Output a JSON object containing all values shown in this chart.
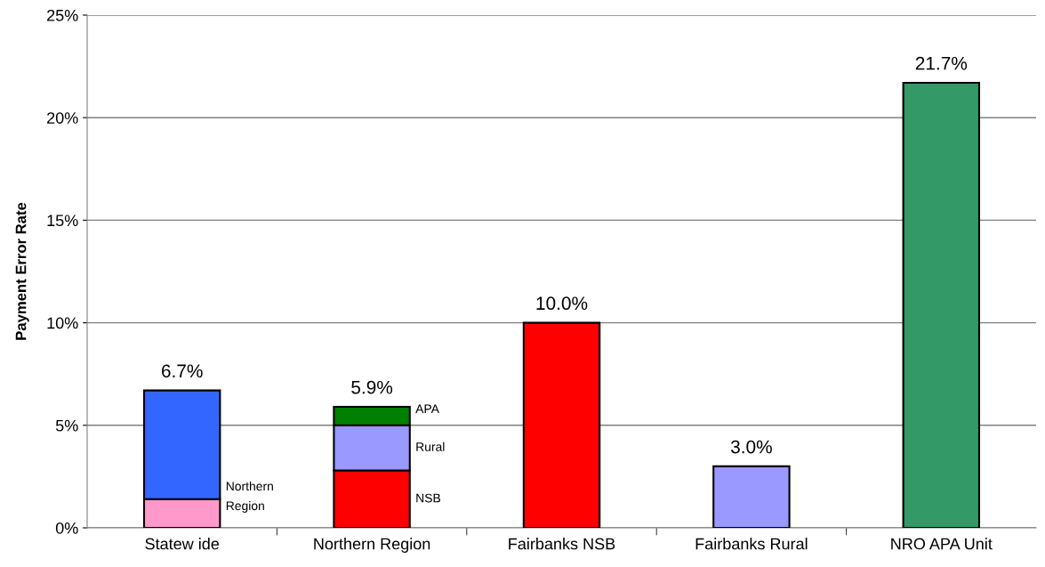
{
  "chart_data": {
    "type": "bar",
    "stacked": true,
    "ylabel": "Payment Error Rate",
    "categories": [
      "Statew ide",
      "Northern Region",
      "Fairbanks NSB",
      "Fairbanks Rural",
      "NRO APA Unit"
    ],
    "series": [
      {
        "colors": [
          "#ff99cc",
          "#ff0000",
          "#ff0000",
          "#9999ff",
          "#339966"
        ],
        "values": [
          1.4,
          2.8,
          10.0,
          3.0,
          21.7
        ]
      },
      {
        "colors": [
          "#3366ff",
          "#9999ff",
          null,
          null,
          null
        ],
        "values": [
          5.3,
          2.2,
          null,
          null,
          null
        ]
      },
      {
        "colors": [
          null,
          "#008000",
          null,
          null,
          null
        ],
        "values": [
          null,
          0.9,
          null,
          null,
          null
        ]
      }
    ],
    "totals": [
      "6.7%",
      "5.9%",
      "10.0%",
      "3.0%",
      "21.7%"
    ],
    "ylim": [
      0,
      25
    ],
    "yticks": [
      {
        "value": 0,
        "label": "0%"
      },
      {
        "value": 5,
        "label": "5%"
      },
      {
        "value": 10,
        "label": "10%"
      },
      {
        "value": 15,
        "label": "15%"
      },
      {
        "value": 20,
        "label": "20%"
      },
      {
        "value": 25,
        "label": "25%"
      }
    ],
    "grid": "y",
    "annotations": [
      "Northern\nRegion",
      "NSB",
      "Rural",
      "APA"
    ]
  }
}
